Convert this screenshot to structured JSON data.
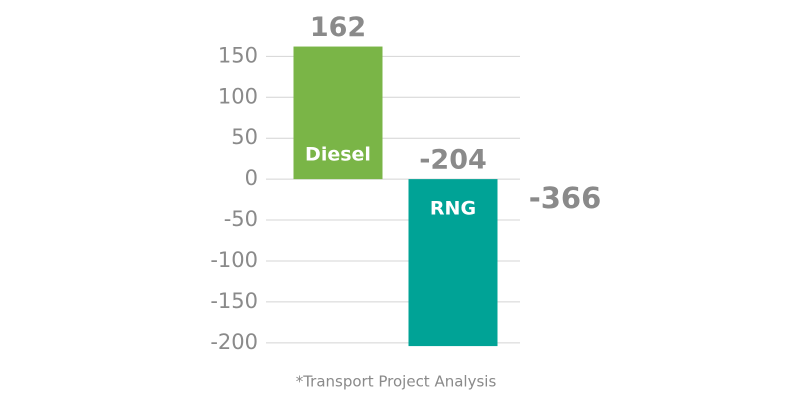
{
  "chart_data": {
    "type": "bar",
    "categories": [
      "Diesel",
      "RNG"
    ],
    "values": [
      162,
      -204
    ],
    "colors": [
      "#7ab547",
      "#00a396"
    ],
    "ylim": [
      -210,
      170
    ],
    "yticks": [
      -200,
      -150,
      -100,
      -50,
      0,
      50,
      100,
      150
    ],
    "grid": true,
    "annotation": "-366",
    "footnote": "*Transport Project Analysis"
  }
}
